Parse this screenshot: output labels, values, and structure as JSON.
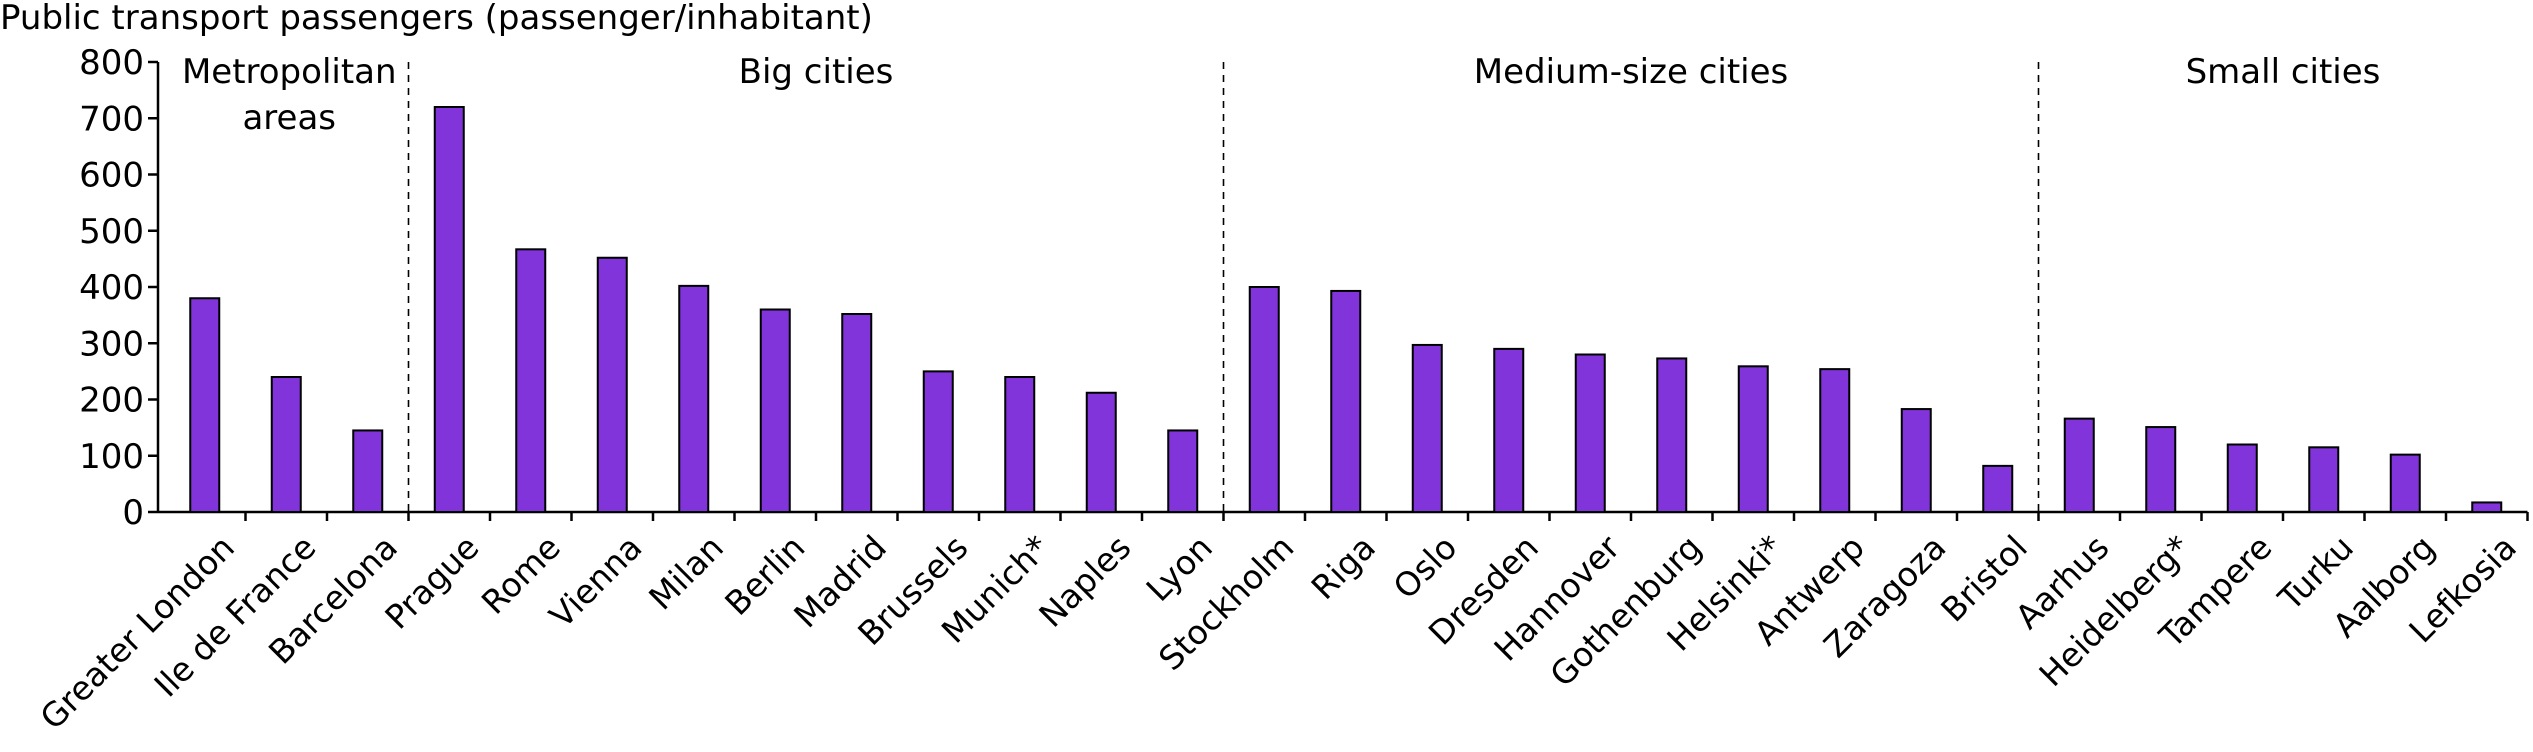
{
  "chart_data": {
    "type": "bar",
    "title": "Public transport passengers (passenger/inhabitant)",
    "ylim": [
      0,
      800
    ],
    "yticks": [
      0,
      100,
      200,
      300,
      400,
      500,
      600,
      700,
      800
    ],
    "categories": [
      "Greater London",
      "Ile de France",
      "Barcelona",
      "Prague",
      "Rome",
      "Vienna",
      "Milan",
      "Berlin",
      "Madrid",
      "Brussels",
      "Munich*",
      "Naples",
      "Lyon",
      "Stockholm",
      "Riga",
      "Oslo",
      "Dresden",
      "Hannover",
      "Gothenburg",
      "Helsinki*",
      "Antwerp",
      "Zaragoza",
      "Bristol",
      "Aarhus",
      "Heidelberg*",
      "Tampere",
      "Turku",
      "Aalborg",
      "Lefkosia"
    ],
    "values": [
      380,
      240,
      145,
      720,
      467,
      452,
      402,
      360,
      352,
      250,
      240,
      212,
      145,
      400,
      393,
      297,
      290,
      280,
      273,
      259,
      254,
      183,
      82,
      166,
      151,
      120,
      115,
      102,
      17
    ],
    "groups": [
      {
        "label": "Metropolitan areas",
        "label_lines": [
          "Metropolitan",
          "areas"
        ],
        "count": 3
      },
      {
        "label": "Big cities",
        "label_lines": [
          "Big cities"
        ],
        "count": 10
      },
      {
        "label": "Medium-size cities",
        "label_lines": [
          "Medium-size cities"
        ],
        "count": 10
      },
      {
        "label": "Small cities",
        "label_lines": [
          "Small cities"
        ],
        "count": 6
      }
    ],
    "colors": {
      "bar": "#8134d9",
      "axis": "#000000"
    }
  }
}
